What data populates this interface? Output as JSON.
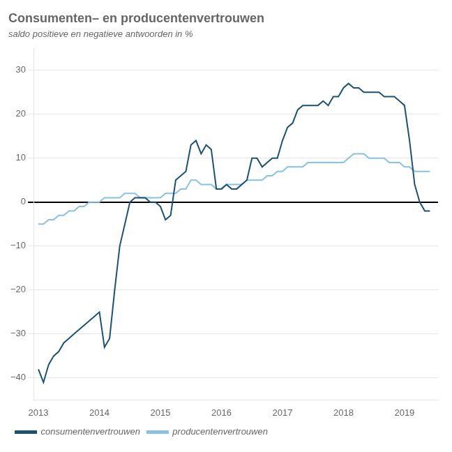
{
  "chart_data": {
    "type": "line",
    "title": "Consumenten– en producentenvertrouwen",
    "subtitle": "saldo positieve en negatieve antwoorden in %",
    "x": [
      2013.0,
      2013.083,
      2013.167,
      2013.25,
      2013.333,
      2013.417,
      2013.5,
      2013.583,
      2013.667,
      2013.75,
      2013.833,
      2013.917,
      2014.0,
      2014.083,
      2014.167,
      2014.25,
      2014.333,
      2014.417,
      2014.5,
      2014.583,
      2014.667,
      2014.75,
      2014.833,
      2014.917,
      2015.0,
      2015.083,
      2015.167,
      2015.25,
      2015.333,
      2015.417,
      2015.5,
      2015.583,
      2015.667,
      2015.75,
      2015.833,
      2015.917,
      2016.0,
      2016.083,
      2016.167,
      2016.25,
      2016.333,
      2016.417,
      2016.5,
      2016.583,
      2016.667,
      2016.75,
      2016.833,
      2016.917,
      2017.0,
      2017.083,
      2017.167,
      2017.25,
      2017.333,
      2017.417,
      2017.5,
      2017.583,
      2017.667,
      2017.75,
      2017.833,
      2017.917,
      2018.0,
      2018.083,
      2018.167,
      2018.25,
      2018.333,
      2018.417,
      2018.5,
      2018.583,
      2018.667,
      2018.75,
      2018.833,
      2018.917,
      2019.0,
      2019.083,
      2019.167,
      2019.25,
      2019.333,
      2019.417
    ],
    "series": [
      {
        "name": "consumentenvertrouwen",
        "color": "#1a5276",
        "values": [
          -38,
          -41,
          -37,
          -35,
          -34,
          -32,
          -31,
          -30,
          -29,
          -28,
          -27,
          -26,
          -25,
          -33,
          -31,
          -20,
          -10,
          -5,
          0,
          1,
          1,
          1,
          0,
          0,
          -1,
          -4,
          -3,
          5,
          6,
          7,
          13,
          14,
          11,
          13,
          12,
          3,
          3,
          4,
          3,
          3,
          4,
          5,
          10,
          10,
          8,
          9,
          10,
          10,
          14,
          17,
          18,
          21,
          22,
          22,
          22,
          22,
          23,
          22,
          24,
          24,
          26,
          27,
          26,
          26,
          25,
          25,
          25,
          25,
          24,
          24,
          24,
          23,
          22,
          14,
          4,
          0,
          -2,
          -2
        ]
      },
      {
        "name": "producentenvertrouwen",
        "color": "#85c1e9",
        "values": [
          -5,
          -5,
          -4,
          -4,
          -3,
          -3,
          -2,
          -2,
          -1,
          -1,
          0,
          0,
          0,
          1,
          1,
          1,
          1,
          2,
          2,
          2,
          1,
          1,
          1,
          1,
          1,
          2,
          2,
          2,
          3,
          3,
          5,
          5,
          4,
          4,
          4,
          3,
          3,
          4,
          4,
          4,
          4,
          5,
          5,
          5,
          5,
          6,
          6,
          7,
          7,
          8,
          8,
          8,
          8,
          9,
          9,
          9,
          9,
          9,
          9,
          9,
          9,
          10,
          11,
          11,
          11,
          10,
          10,
          10,
          10,
          9,
          9,
          9,
          8,
          8,
          7,
          7,
          7,
          7
        ]
      }
    ],
    "xlim": [
      2012.92,
      2019.55
    ],
    "xticks": [
      2013,
      2014,
      2015,
      2016,
      2017,
      2018,
      2019
    ],
    "ylim": [
      -45,
      35
    ],
    "yticks": [
      {
        "value": -40,
        "label": "−40"
      },
      {
        "value": -30,
        "label": "−30"
      },
      {
        "value": -20,
        "label": "−20"
      },
      {
        "value": -10,
        "label": "−10"
      },
      0,
      10,
      20,
      30
    ],
    "grid": "y",
    "legend": "bottom"
  }
}
